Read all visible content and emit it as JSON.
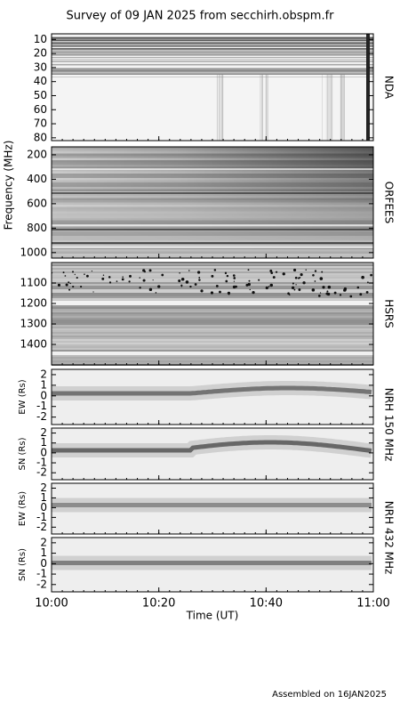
{
  "chart_data": {
    "type": "spectrogram",
    "title": "Survey of 09 JAN 2025 from secchirh.obspm.fr",
    "xlabel": "Time (UT)",
    "ylabel": "Frequency (MHz)",
    "xlim": [
      "10:00",
      "11:00"
    ],
    "xticks": [
      "10:00",
      "10:20",
      "10:40",
      "11:00"
    ],
    "panels": [
      {
        "label": "NDA",
        "ylim": [
          82,
          6
        ],
        "yticks": [
          10,
          20,
          30,
          40,
          50,
          60,
          70,
          80
        ]
      },
      {
        "label": "ORFEES",
        "ylim": [
          1045,
          135
        ],
        "yticks": [
          200,
          400,
          600,
          800,
          1000
        ]
      },
      {
        "label": "HSRS",
        "ylim": [
          1500,
          1000
        ],
        "yticks": [
          1100,
          1200,
          1300,
          1400
        ]
      },
      {
        "ylabel": "EW (Rs)",
        "ylim": [
          -2.7,
          2.5
        ],
        "yticks": [
          2,
          1,
          0,
          -1,
          -2
        ]
      },
      {
        "ylabel": "SN (Rs)",
        "ylim": [
          -2.7,
          2.5
        ],
        "yticks": [
          2,
          1,
          0,
          -1,
          -2
        ]
      },
      {
        "ylabel": "EW (Rs)",
        "ylim": [
          -2.7,
          2.5
        ],
        "yticks": [
          2,
          1,
          0,
          -1,
          -2
        ]
      },
      {
        "ylabel": "SN (Rs)",
        "ylim": [
          -2.7,
          2.5
        ],
        "yticks": [
          2,
          1,
          0,
          -1,
          -2
        ]
      }
    ],
    "groups": [
      {
        "label": "NRH 150 MHz"
      },
      {
        "label": "NRH 432 MHz"
      }
    ],
    "footer": "Assembled on 16JAN2025"
  }
}
